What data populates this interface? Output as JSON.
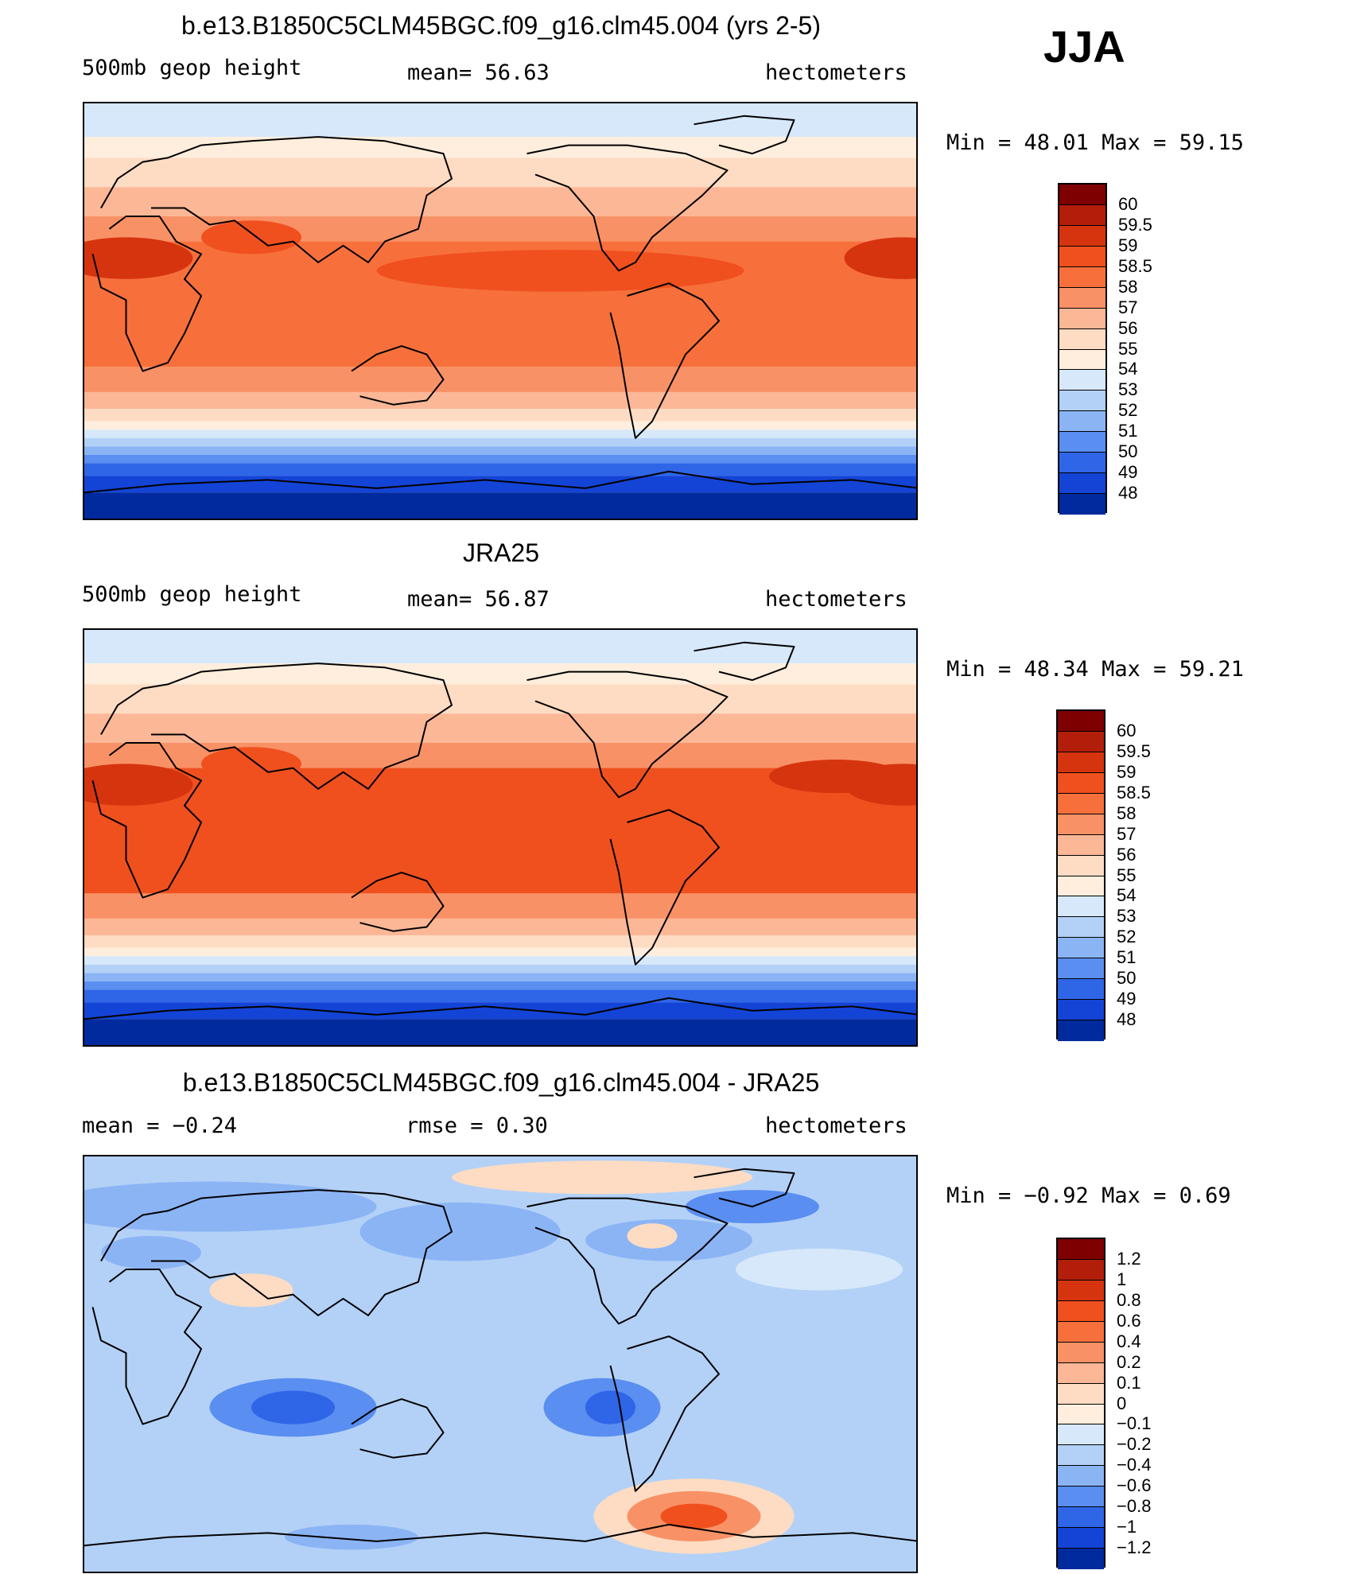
{
  "season": "JJA",
  "panels": [
    {
      "id": "model",
      "title": "b.e13.B1850C5CLM45BGC.f09_g16.clm45.004 (yrs 2-5)",
      "left_label": "500mb geop height",
      "center_label": "mean=  56.63",
      "right_label": "hectometers",
      "minmax": "Min =   48.01  Max =   59.15",
      "field": "abs",
      "colorbar": {
        "levels": [
          "60",
          "59.5",
          "59",
          "58.5",
          "58",
          "57",
          "56",
          "55",
          "54",
          "53",
          "52",
          "51",
          "50",
          "49",
          "48"
        ],
        "colors": [
          "#7f0000",
          "#b21e0a",
          "#d6340f",
          "#f0501e",
          "#f7703c",
          "#f99166",
          "#fbb796",
          "#fddcc3",
          "#ffeedd",
          "#d6e8fa",
          "#b3d1f7",
          "#8bb4f5",
          "#5a8ef0",
          "#2f66e8",
          "#1444d6",
          "#002a9e"
        ]
      }
    },
    {
      "id": "obs",
      "title": "JRA25",
      "left_label": "500mb geop height",
      "center_label": "mean=  56.87",
      "right_label": "hectometers",
      "minmax": "Min =   48.34  Max =   59.21",
      "field": "abs2",
      "colorbar": {
        "levels": [
          "60",
          "59.5",
          "59",
          "58.5",
          "58",
          "57",
          "56",
          "55",
          "54",
          "53",
          "52",
          "51",
          "50",
          "49",
          "48"
        ],
        "colors": [
          "#7f0000",
          "#b21e0a",
          "#d6340f",
          "#f0501e",
          "#f7703c",
          "#f99166",
          "#fbb796",
          "#fddcc3",
          "#ffeedd",
          "#d6e8fa",
          "#b3d1f7",
          "#8bb4f5",
          "#5a8ef0",
          "#2f66e8",
          "#1444d6",
          "#002a9e"
        ]
      }
    },
    {
      "id": "diff",
      "title": "b.e13.B1850C5CLM45BGC.f09_g16.clm45.004 - JRA25",
      "left_label": "mean =   −0.24",
      "center_label": "rmse =    0.30",
      "right_label": "hectometers",
      "minmax": "Min =   −0.92  Max =    0.69",
      "field": "diff",
      "colorbar": {
        "levels": [
          "1.2",
          "1",
          "0.8",
          "0.6",
          "0.4",
          "0.2",
          "0.1",
          "0",
          "−0.1",
          "−0.2",
          "−0.4",
          "−0.6",
          "−0.8",
          "−1",
          "−1.2"
        ],
        "colors": [
          "#7f0000",
          "#b21e0a",
          "#d6340f",
          "#f0501e",
          "#f7703c",
          "#f99166",
          "#fbb796",
          "#fddcc3",
          "#ffeedd",
          "#d6e8fa",
          "#b3d1f7",
          "#8bb4f5",
          "#5a8ef0",
          "#2f66e8",
          "#1444d6",
          "#002a9e"
        ]
      }
    }
  ]
}
